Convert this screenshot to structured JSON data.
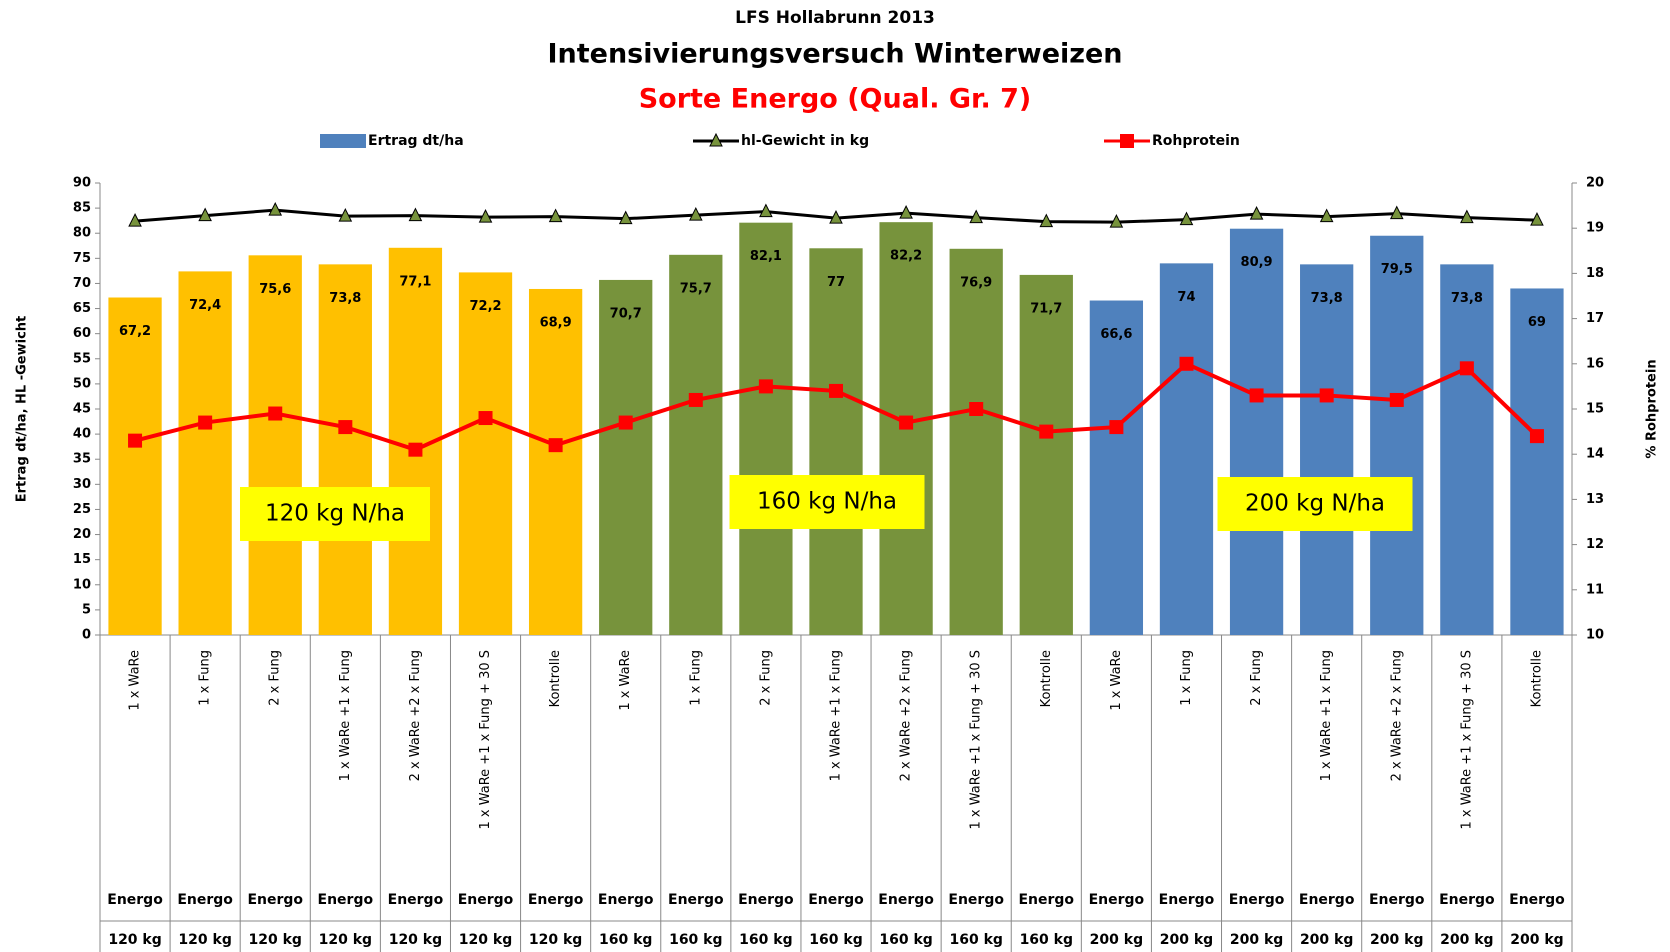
{
  "chart_data": {
    "type": "bar_line",
    "title": "LFS Hollabrunn 2013",
    "subtitle": "Intensivierungsversuch Winterweizen",
    "subtitle2": "Sorte Energo (Qual. Gr. 7)",
    "ylabel": "Ertrag dt/ha, HL -Gewicht",
    "y2label": "% Rohprotein",
    "categories": [
      "1 x WaRe",
      "1 x Fung",
      "2 x Fung",
      "1 x WaRe +1 x Fung",
      "2 x WaRe +2 x Fung",
      "1 x WaRe +1 x Fung + 30 S",
      "Kontrolle",
      "1 x WaRe",
      "1 x Fung",
      "2 x Fung",
      "1 x WaRe +1 x Fung",
      "2 x WaRe +2 x Fung",
      "1 x WaRe +1 x Fung + 30 S",
      "Kontrolle",
      "1 x WaRe",
      "1 x Fung",
      "2 x Fung",
      "1 x WaRe +1 x Fung",
      "2 x WaRe +2 x Fung",
      "1 x WaRe +1 x Fung + 30 S",
      "Kontrolle"
    ],
    "variety": [
      "Energo",
      "Energo",
      "Energo",
      "Energo",
      "Energo",
      "Energo",
      "Energo",
      "Energo",
      "Energo",
      "Energo",
      "Energo",
      "Energo",
      "Energo",
      "Energo",
      "Energo",
      "Energo",
      "Energo",
      "Energo",
      "Energo",
      "Energo",
      "Energo"
    ],
    "nitrogen": [
      "120 kg",
      "120 kg",
      "120 kg",
      "120 kg",
      "120 kg",
      "120 kg",
      "120 kg",
      "160 kg",
      "160 kg",
      "160 kg",
      "160 kg",
      "160 kg",
      "160 kg",
      "160 kg",
      "200 kg",
      "200 kg",
      "200 kg",
      "200 kg",
      "200 kg",
      "200 kg",
      "200 kg"
    ],
    "series": [
      {
        "name": "Ertrag dt/ha",
        "type": "bar",
        "color": "#4f81bd",
        "colors": [
          "#ffc000",
          "#ffc000",
          "#ffc000",
          "#ffc000",
          "#ffc000",
          "#ffc000",
          "#ffc000",
          "#77933c",
          "#77933c",
          "#77933c",
          "#77933c",
          "#77933c",
          "#77933c",
          "#77933c",
          "#4f81bd",
          "#4f81bd",
          "#4f81bd",
          "#4f81bd",
          "#4f81bd",
          "#4f81bd",
          "#4f81bd"
        ],
        "values": [
          67.2,
          72.4,
          75.6,
          73.8,
          77.1,
          72.2,
          68.9,
          70.7,
          75.7,
          82.1,
          77,
          82.2,
          76.9,
          71.7,
          66.6,
          74,
          80.9,
          73.8,
          79.5,
          73.8,
          69
        ],
        "value_labels": [
          "67,2",
          "72,4",
          "75,6",
          "73,8",
          "77,1",
          "72,2",
          "68,9",
          "70,7",
          "75,7",
          "82,1",
          "77",
          "82,2",
          "76,9",
          "71,7",
          "66,6",
          "74",
          "80,9",
          "73,8",
          "79,5",
          "73,8",
          "69"
        ]
      },
      {
        "name": "hl-Gewicht in kg",
        "type": "line",
        "marker": "triangle",
        "color": "#000000",
        "marker_color": "#77933c",
        "values": [
          82.4,
          83.5,
          84.6,
          83.4,
          83.5,
          83.2,
          83.3,
          82.9,
          83.6,
          84.3,
          83.0,
          84.0,
          83.1,
          82.3,
          82.2,
          82.7,
          83.8,
          83.3,
          83.9,
          83.1,
          82.6
        ]
      },
      {
        "name": "Rohprotein",
        "type": "line",
        "marker": "square",
        "color": "#ff0000",
        "axis": "y2",
        "values": [
          14.3,
          14.7,
          14.9,
          14.6,
          14.1,
          14.8,
          14.2,
          14.7,
          15.2,
          15.5,
          15.4,
          14.7,
          15.0,
          14.5,
          14.6,
          16.0,
          15.3,
          15.3,
          15.2,
          15.9,
          14.4
        ]
      }
    ],
    "annotations": [
      "120 kg N/ha",
      "160 kg N/ha",
      "200 kg N/ha"
    ],
    "ylim": [
      0,
      90
    ],
    "yticks": [
      0,
      5,
      10,
      15,
      20,
      25,
      30,
      35,
      40,
      45,
      50,
      55,
      60,
      65,
      70,
      75,
      80,
      85,
      90
    ],
    "y2lim": [
      10,
      20
    ],
    "y2ticks": [
      10,
      11,
      12,
      13,
      14,
      15,
      16,
      17,
      18,
      19,
      20
    ],
    "grid": false,
    "legend": "top"
  }
}
